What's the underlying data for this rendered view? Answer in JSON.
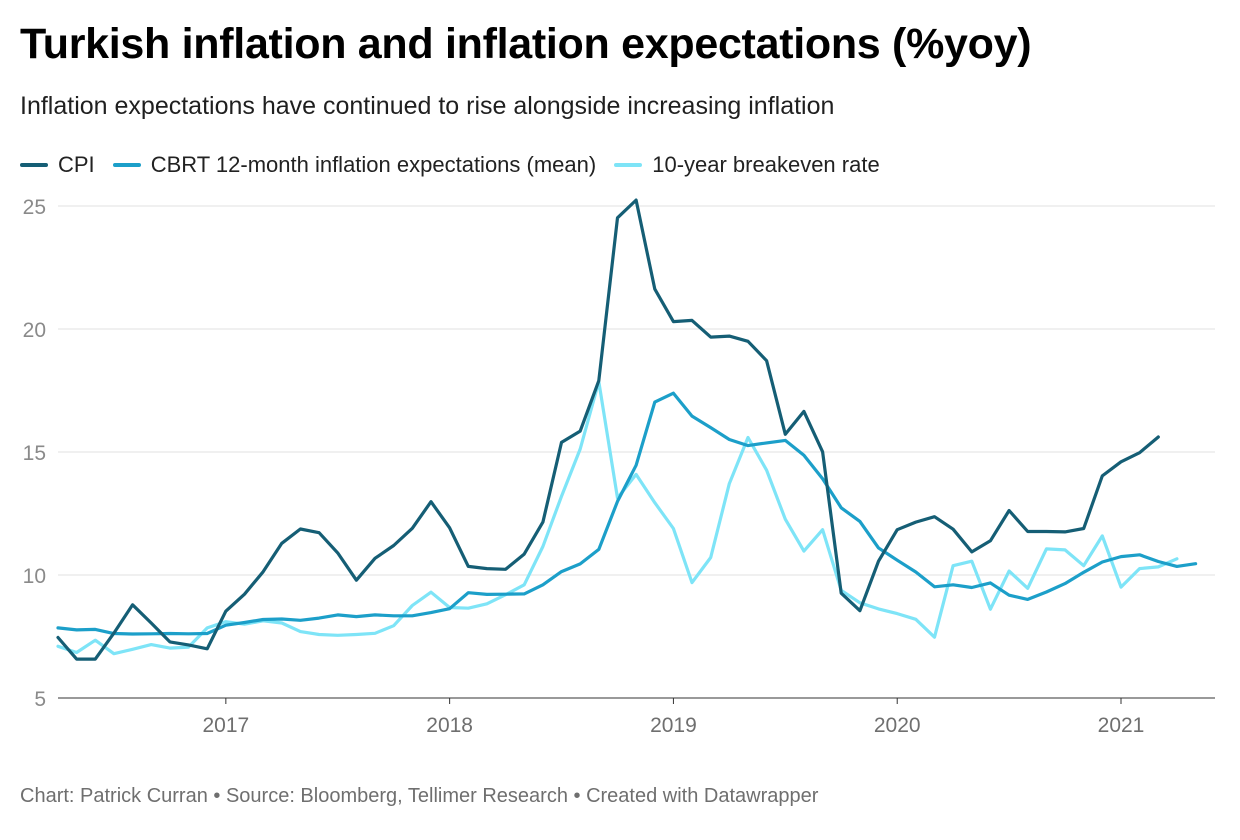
{
  "header": {
    "title": "Turkish inflation and inflation expectations (%yoy)",
    "subtitle": "Inflation expectations have continued to rise alongside increasing inflation"
  },
  "footer": {
    "credit": "Chart: Patrick Curran • Source: Bloomberg, Tellimer Research • Created with Datawrapper"
  },
  "chart_data": {
    "type": "line",
    "title": "Turkish inflation and inflation expectations (%yoy)",
    "subtitle": "Inflation expectations have continued to rise alongside increasing inflation",
    "xlabel": "",
    "ylabel": "",
    "ylim": [
      5,
      25
    ],
    "yticks": [
      5,
      10,
      15,
      20,
      25
    ],
    "xlim": [
      2016.25,
      2021.42
    ],
    "xticks": [
      {
        "value": 2017.0,
        "label": "2017"
      },
      {
        "value": 2018.0,
        "label": "2018"
      },
      {
        "value": 2019.0,
        "label": "2019"
      },
      {
        "value": 2020.0,
        "label": "2020"
      },
      {
        "value": 2021.0,
        "label": "2021"
      }
    ],
    "grid": true,
    "legend_position": "top-left",
    "series": [
      {
        "name": "CPI",
        "color": "#155e75",
        "start": 2016.25,
        "step": 0.08333,
        "values": [
          7.46,
          6.58,
          6.58,
          7.64,
          8.79,
          8.05,
          7.28,
          7.16,
          7.0,
          8.53,
          9.22,
          10.13,
          11.29,
          11.87,
          11.72,
          10.9,
          9.79,
          10.68,
          11.2,
          11.9,
          12.98,
          11.92,
          10.35,
          10.26,
          10.23,
          10.85,
          12.15,
          15.39,
          15.85,
          17.9,
          24.52,
          25.24,
          21.62,
          20.3,
          20.35,
          19.67,
          19.71,
          19.5,
          18.71,
          15.72,
          16.65,
          15.01,
          9.26,
          8.55,
          10.56,
          11.84,
          12.15,
          12.37,
          11.86,
          10.94,
          11.39,
          12.62,
          11.77,
          11.77,
          11.75,
          11.89,
          14.03,
          14.6,
          14.97,
          15.61
        ]
      },
      {
        "name": "CBRT 12-month inflation expectations (mean)",
        "color": "#1c9fc9",
        "start": 2016.25,
        "step": 0.08333,
        "values": [
          7.85,
          7.77,
          7.79,
          7.62,
          7.6,
          7.61,
          7.62,
          7.61,
          7.62,
          7.96,
          8.07,
          8.19,
          8.21,
          8.16,
          8.25,
          8.38,
          8.31,
          8.38,
          8.34,
          8.34,
          8.47,
          8.63,
          9.28,
          9.21,
          9.22,
          9.23,
          9.6,
          10.14,
          10.45,
          11.04,
          12.99,
          14.46,
          17.03,
          17.39,
          16.46,
          15.99,
          15.51,
          15.26,
          15.37,
          15.47,
          14.87,
          13.91,
          12.73,
          12.18,
          11.1,
          10.6,
          10.12,
          9.52,
          9.6,
          9.49,
          9.68,
          9.18,
          9.01,
          9.31,
          9.65,
          10.11,
          10.53,
          10.75,
          10.82,
          10.55,
          10.35,
          10.46
        ]
      },
      {
        "name": "10-year breakeven rate",
        "color": "#7ee4f7",
        "start": 2016.25,
        "step": 0.08333,
        "values": [
          7.1,
          6.85,
          7.35,
          6.8,
          6.98,
          7.17,
          7.03,
          7.07,
          7.85,
          8.1,
          8.0,
          8.14,
          8.05,
          7.7,
          7.58,
          7.55,
          7.58,
          7.63,
          7.94,
          8.76,
          9.3,
          8.68,
          8.65,
          8.83,
          9.2,
          9.6,
          11.16,
          13.2,
          15.12,
          17.86,
          13.13,
          14.09,
          12.94,
          11.89,
          9.69,
          10.71,
          13.71,
          15.59,
          14.26,
          12.27,
          10.97,
          11.84,
          9.38,
          8.87,
          8.62,
          8.43,
          8.2,
          7.47,
          10.38,
          10.56,
          8.61,
          10.16,
          9.46,
          11.06,
          11.02,
          10.38,
          11.59,
          9.51,
          10.26,
          10.33,
          10.66
        ]
      }
    ]
  }
}
